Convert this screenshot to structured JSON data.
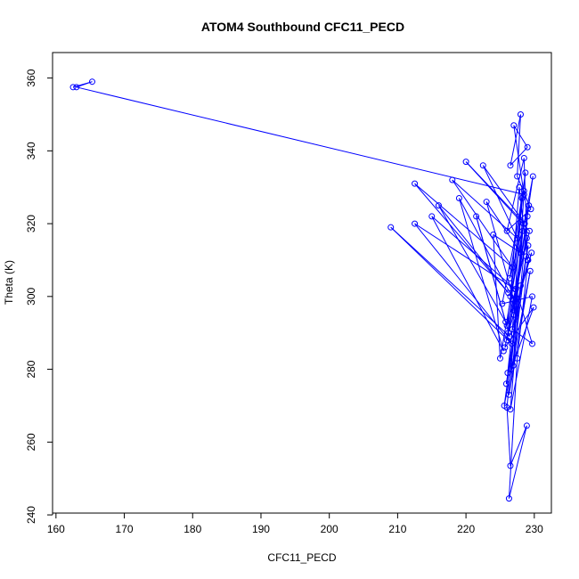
{
  "chart_data": {
    "type": "line",
    "title": "ATOM4 Southbound CFC11_PECD",
    "xlabel": "CFC11_PECD",
    "ylabel": "Theta (K)",
    "xlim": [
      159.5,
      232.5
    ],
    "ylim": [
      240.5,
      367
    ],
    "xticks": [
      160,
      170,
      180,
      190,
      200,
      210,
      220,
      230
    ],
    "yticks": [
      240,
      260,
      280,
      300,
      320,
      340,
      360
    ],
    "grid": false,
    "legend": "none",
    "series_color": "#0000ff",
    "marker": "open-circle",
    "series": [
      {
        "x": [
          162.5,
          165.3,
          163.0,
          228.5,
          227.0,
          229.0,
          226.5,
          228.0,
          227.5,
          229.5,
          226.0,
          228.5,
          229.0,
          227.8,
          226.5,
          229.8,
          227.0,
          228.2,
          226.0,
          229.3,
          220.0,
          228.6,
          222.5,
          227.5,
          218.0,
          226.8,
          212.5,
          226.2,
          216.0,
          225.8,
          221.5,
          226.4,
          209.0,
          226.7,
          212.5,
          227.2,
          215.0,
          225.5,
          219.0,
          227.0,
          223.0,
          228.0,
          224.0,
          225.0,
          228.3,
          226.1,
          229.1,
          225.9,
          228.8,
          226.3,
          229.4,
          225.6,
          228.0,
          226.5,
          229.7,
          225.3,
          228.5,
          226.9,
          229.0,
          226.0,
          228.7,
          226.4,
          229.2,
          227.0,
          229.6,
          226.2,
          228.9,
          225.7,
          229.9,
          226.6,
          228.4,
          226.0,
          226.5,
          228.9,
          226.3,
          227.5,
          229.1,
          226.8,
          229.7,
          227.3
        ],
        "y": [
          357.5,
          359.0,
          357.5,
          328.0,
          347.0,
          341.0,
          336.0,
          350.0,
          333.0,
          324.0,
          318.0,
          338.0,
          310.0,
          330.0,
          300.0,
          333.0,
          296.0,
          327.0,
          292.0,
          318.0,
          337.0,
          320.0,
          336.0,
          316.0,
          332.0,
          308.0,
          331.0,
          301.0,
          325.0,
          293.0,
          322.0,
          289.0,
          319.0,
          287.0,
          320.0,
          302.0,
          322.0,
          285.0,
          327.0,
          299.0,
          326.0,
          312.0,
          317.0,
          283.0,
          318.0,
          279.0,
          314.0,
          276.0,
          311.0,
          273.0,
          307.0,
          270.0,
          303.0,
          269.0,
          300.0,
          298.0,
          329.0,
          281.0,
          322.0,
          288.0,
          334.0,
          305.0,
          325.0,
          295.0,
          312.0,
          290.0,
          316.0,
          286.0,
          297.0,
          280.0,
          320.0,
          269.5,
          253.5,
          264.5,
          244.5,
          283.0,
          310.0,
          291.0,
          287.0,
          302.0
        ]
      }
    ]
  }
}
